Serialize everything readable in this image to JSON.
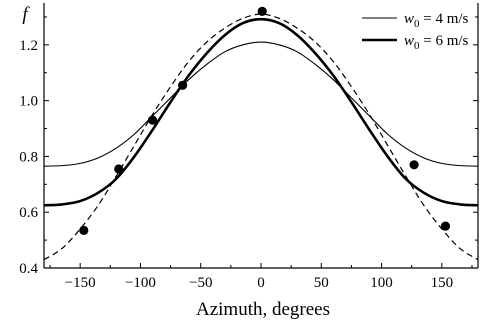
{
  "chart_data": {
    "type": "line",
    "xlabel": "Azimuth, degrees",
    "ylabel": "f",
    "xlim": [
      -180,
      180
    ],
    "ylim": [
      0.4,
      1.35
    ],
    "x_ticks": [
      -150,
      -100,
      -50,
      0,
      50,
      100,
      150
    ],
    "x_tick_labels": [
      "−150",
      "−100",
      "−50",
      "0",
      "50",
      "100",
      "150"
    ],
    "y_ticks": [
      0.4,
      0.6,
      0.8,
      1.0,
      1.2
    ],
    "y_tick_labels": [
      "0.4",
      "0.6",
      "0.8",
      "1.0",
      "1.2"
    ],
    "grid": false,
    "legend_position": "top-right",
    "series": [
      {
        "name": "w0 = 4 m/s",
        "legend_var": "w",
        "legend_sub": "0",
        "legend_rest": " = 4 m/s",
        "style": "thin-solid",
        "x": [
          -180,
          -165,
          -150,
          -135,
          -120,
          -105,
          -90,
          -75,
          -60,
          -45,
          -30,
          -15,
          0,
          15,
          30,
          45,
          60,
          75,
          90,
          105,
          120,
          135,
          150,
          165,
          180
        ],
        "y": [
          0.765,
          0.767,
          0.775,
          0.795,
          0.83,
          0.88,
          0.945,
          1.01,
          1.075,
          1.13,
          1.175,
          1.2,
          1.21,
          1.2,
          1.175,
          1.13,
          1.075,
          1.01,
          0.945,
          0.88,
          0.83,
          0.795,
          0.775,
          0.767,
          0.765
        ]
      },
      {
        "name": "w0 = 6 m/s",
        "legend_var": "w",
        "legend_sub": "0",
        "legend_rest": " = 6 m/s",
        "style": "thick-solid",
        "x": [
          -180,
          -165,
          -150,
          -135,
          -120,
          -105,
          -90,
          -75,
          -60,
          -45,
          -30,
          -15,
          0,
          15,
          30,
          45,
          60,
          75,
          90,
          105,
          120,
          135,
          150,
          165,
          180
        ],
        "y": [
          0.625,
          0.628,
          0.64,
          0.67,
          0.72,
          0.8,
          0.895,
          0.995,
          1.09,
          1.17,
          1.235,
          1.278,
          1.292,
          1.278,
          1.235,
          1.17,
          1.09,
          0.995,
          0.895,
          0.8,
          0.72,
          0.67,
          0.64,
          0.628,
          0.625
        ]
      },
      {
        "style": "dashed",
        "x": [
          -180,
          -165,
          -150,
          -135,
          -120,
          -105,
          -90,
          -75,
          -60,
          -45,
          -30,
          -15,
          0,
          15,
          30,
          45,
          60,
          75,
          90,
          105,
          120,
          135,
          150,
          165,
          180
        ],
        "y": [
          0.43,
          0.47,
          0.54,
          0.625,
          0.73,
          0.84,
          0.95,
          1.05,
          1.14,
          1.21,
          1.26,
          1.295,
          1.31,
          1.295,
          1.26,
          1.21,
          1.14,
          1.05,
          0.95,
          0.84,
          0.73,
          0.625,
          0.54,
          0.47,
          0.43
        ]
      },
      {
        "style": "points",
        "x": [
          -147,
          -118,
          -90,
          -65,
          1,
          127,
          153
        ],
        "y": [
          0.535,
          0.755,
          0.93,
          1.055,
          1.32,
          0.77,
          0.55
        ]
      }
    ]
  }
}
